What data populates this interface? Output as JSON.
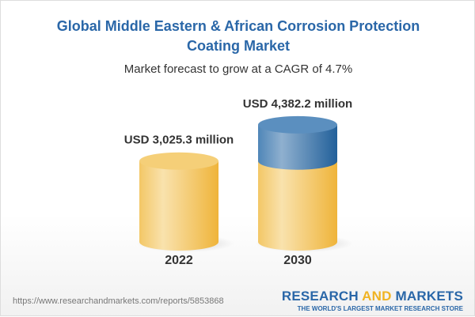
{
  "title": "Global Middle Eastern & African Corrosion Protection Coating Market",
  "subtitle": "Market forecast to grow at a CAGR of 4.7%",
  "chart_data": {
    "type": "bar",
    "style": "3d-cylinder",
    "categories": [
      "2022",
      "2030"
    ],
    "values": [
      3025.3,
      4382.2
    ],
    "data_labels": [
      "USD 3,025.3 million",
      "USD 4,382.2 million"
    ],
    "unit": "USD million",
    "cagr": "4.7%",
    "colors": {
      "base": "#f3c35a",
      "growth": "#3d78ad"
    }
  },
  "footer": {
    "url": "https://www.researchandmarkets.com/reports/5853868",
    "logo_part1": "RESEARCH ",
    "logo_part2": "AND",
    "logo_part3": " MARKETS",
    "tagline": "THE WORLD'S LARGEST MARKET RESEARCH STORE"
  }
}
